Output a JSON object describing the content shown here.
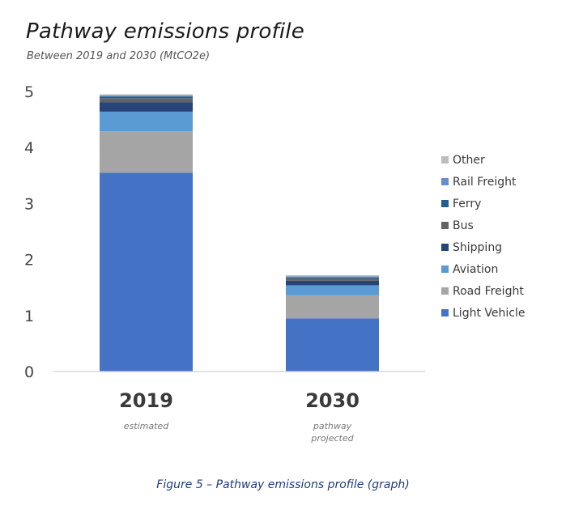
{
  "title": "Pathway emissions profile",
  "subtitle": "Between 2019 and 2030 (MtCO2e)",
  "caption": "Figure 5 – Pathway emissions profile (graph)",
  "chart_data": {
    "type": "bar",
    "stacked": true,
    "categories": [
      "2019",
      "2030"
    ],
    "category_sublabels": [
      [
        "estimated"
      ],
      [
        "pathway",
        "projected"
      ]
    ],
    "y_ticks": [
      "0",
      "1",
      "2",
      "3",
      "4",
      "5"
    ],
    "ylim": [
      0,
      5
    ],
    "grid": false,
    "legend_position": "right",
    "series": [
      {
        "name": "Light Vehicle",
        "color": "#4472c4",
        "values": [
          3.55,
          0.95
        ]
      },
      {
        "name": "Road Freight",
        "color": "#a5a5a5",
        "values": [
          0.74,
          0.41
        ]
      },
      {
        "name": "Aviation",
        "color": "#5b9bd5",
        "values": [
          0.35,
          0.18
        ]
      },
      {
        "name": "Shipping",
        "color": "#264478",
        "values": [
          0.17,
          0.08
        ]
      },
      {
        "name": "Bus",
        "color": "#636363",
        "values": [
          0.07,
          0.04
        ]
      },
      {
        "name": "Ferry",
        "color": "#255e91",
        "values": [
          0.03,
          0.02
        ]
      },
      {
        "name": "Rail Freight",
        "color": "#698ed0",
        "values": [
          0.02,
          0.02
        ]
      },
      {
        "name": "Other",
        "color": "#bdbdbd",
        "values": [
          0.02,
          0.02
        ]
      }
    ]
  }
}
